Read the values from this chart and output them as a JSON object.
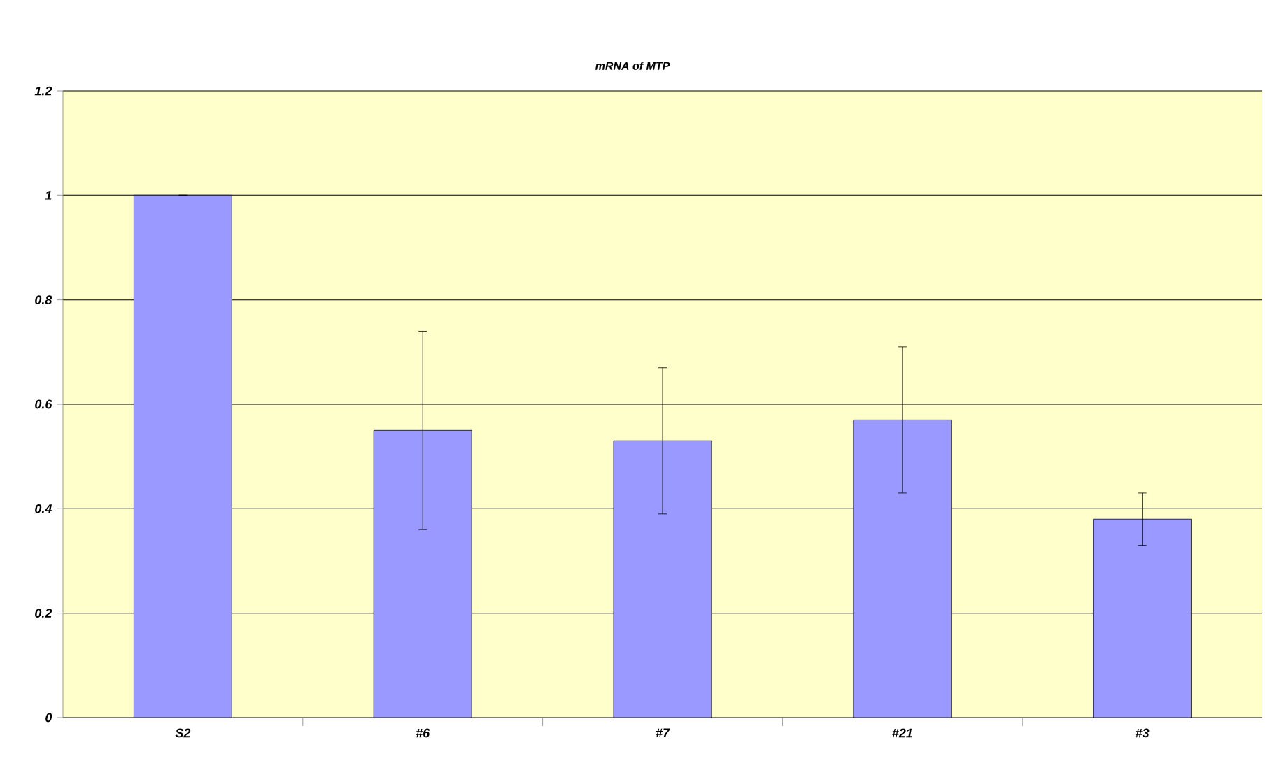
{
  "chart_data": {
    "type": "bar",
    "title": "*mRNA of MTP*",
    "categories": [
      "S2",
      "#6",
      "#7",
      "#21",
      "#3"
    ],
    "values": [
      1,
      0.55,
      0.53,
      0.57,
      0.38
    ],
    "errors": [
      0,
      0.19,
      0.14,
      0.14,
      0.05
    ],
    "color": "#9999ff",
    "ylim": [
      0,
      1.2
    ],
    "yticks": [
      0,
      0.2,
      0.4,
      0.6,
      0.8,
      1,
      1.2
    ],
    "grid": "y"
  }
}
